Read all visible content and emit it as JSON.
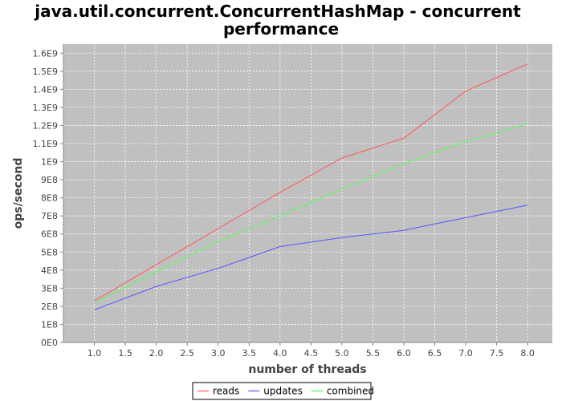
{
  "chart_data": {
    "type": "line",
    "title_lines": [
      "java.util.concurrent.ConcurrentHashMap - concurrent",
      "performance"
    ],
    "xlabel": "number of threads",
    "ylabel": "ops/second",
    "xlim": [
      0.5,
      8.4
    ],
    "ylim": [
      0,
      1.65
    ],
    "x": [
      1,
      2,
      3,
      4,
      5,
      6,
      7,
      8
    ],
    "x_ticks": [
      1.0,
      1.5,
      2.0,
      2.5,
      3.0,
      3.5,
      4.0,
      4.5,
      5.0,
      5.5,
      6.0,
      6.5,
      7.0,
      7.5,
      8.0
    ],
    "x_tick_labels": [
      "1.0",
      "1.5",
      "2.0",
      "2.5",
      "3.0",
      "3.5",
      "4.0",
      "4.5",
      "5.0",
      "5.5",
      "6.0",
      "6.5",
      "7.0",
      "7.5",
      "8.0"
    ],
    "y_ticks": [
      0,
      0.1,
      0.2,
      0.3,
      0.4,
      0.5,
      0.6,
      0.7,
      0.8,
      0.9,
      1.0,
      1.1,
      1.2,
      1.3,
      1.4,
      1.5,
      1.6
    ],
    "y_tick_labels": [
      "0E0",
      "1E8",
      "2E8",
      "3E8",
      "4E8",
      "5E8",
      "6E8",
      "7E8",
      "8E8",
      "9E8",
      "1E9",
      "1.1E9",
      "1.2E9",
      "1.3E9",
      "1.4E9",
      "1.5E9",
      "1.6E9"
    ],
    "y_unit_note": "y values in units of 1E9",
    "series": [
      {
        "name": "reads",
        "color": "#ff5555",
        "values": [
          0.23,
          0.43,
          0.63,
          0.83,
          1.02,
          1.13,
          1.39,
          1.54
        ]
      },
      {
        "name": "updates",
        "color": "#5555ff",
        "values": [
          0.18,
          0.31,
          0.41,
          0.53,
          0.58,
          0.62,
          0.69,
          0.76
        ]
      },
      {
        "name": "combined",
        "color": "#55ff55",
        "values": [
          0.22,
          0.39,
          0.56,
          0.7,
          0.85,
          0.99,
          1.11,
          1.21
        ]
      }
    ],
    "grid": true,
    "legend_position": "bottom-center",
    "colors": {
      "plot_background": "#c0c0c0",
      "gridline": "#ffffff"
    }
  }
}
